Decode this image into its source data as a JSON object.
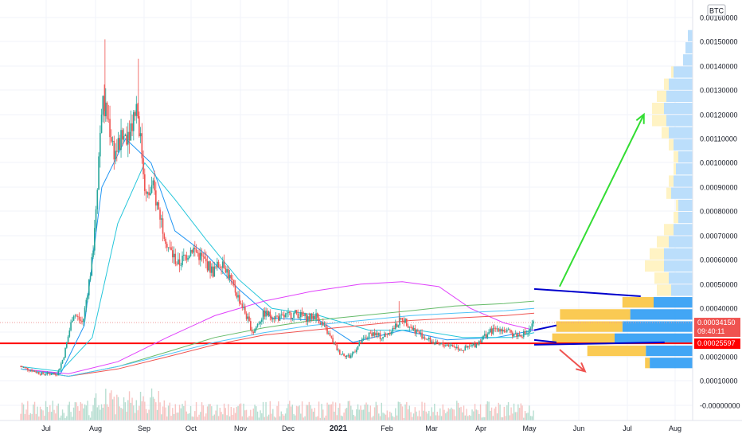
{
  "chart_data": {
    "type": "candlestick",
    "currency_label": "BTC",
    "y_ticks": [
      "0.00160000",
      "0.00150000",
      "0.00140000",
      "0.00130000",
      "0.00120000",
      "0.00110000",
      "0.00100000",
      "0.00090000",
      "0.00080000",
      "0.00070000",
      "0.00060000",
      "0.00050000",
      "0.00040000",
      "0.00030000",
      "0.00020000",
      "0.00010000",
      "-0.00000000"
    ],
    "ylim": [
      0,
      0.00163
    ],
    "x_ticks": [
      {
        "label": "Jul",
        "bold": false
      },
      {
        "label": "Aug",
        "bold": false
      },
      {
        "label": "Sep",
        "bold": false
      },
      {
        "label": "Oct",
        "bold": false
      },
      {
        "label": "Nov",
        "bold": false
      },
      {
        "label": "Dec",
        "bold": false
      },
      {
        "label": "2021",
        "bold": true
      },
      {
        "label": "Feb",
        "bold": false
      },
      {
        "label": "Mar",
        "bold": false
      },
      {
        "label": "Apr",
        "bold": false
      },
      {
        "label": "May",
        "bold": false
      },
      {
        "label": "Jun",
        "bold": false
      },
      {
        "label": "Jul",
        "bold": false
      },
      {
        "label": "Aug",
        "bold": false
      }
    ],
    "grid": true,
    "price_anchors": [
      [
        "2020-06-15",
        0.00016
      ],
      [
        "2020-06-28",
        0.00013
      ],
      [
        "2020-07-08",
        0.00013
      ],
      [
        "2020-07-12",
        0.0002
      ],
      [
        "2020-07-18",
        0.00038
      ],
      [
        "2020-07-24",
        0.00034
      ],
      [
        "2020-07-30",
        0.0006
      ],
      [
        "2020-08-02",
        0.0009
      ],
      [
        "2020-08-05",
        0.00125
      ],
      [
        "2020-08-09",
        0.00118
      ],
      [
        "2020-08-13",
        0.00104
      ],
      [
        "2020-08-18",
        0.0011
      ],
      [
        "2020-08-23",
        0.00115
      ],
      [
        "2020-08-27",
        0.00125
      ],
      [
        "2020-08-30",
        0.00105
      ],
      [
        "2020-09-02",
        0.00085
      ],
      [
        "2020-09-06",
        0.0009
      ],
      [
        "2020-09-10",
        0.0008
      ],
      [
        "2020-09-16",
        0.00065
      ],
      [
        "2020-09-22",
        0.00058
      ],
      [
        "2020-10-01",
        0.00065
      ],
      [
        "2020-10-08",
        0.0006
      ],
      [
        "2020-10-14",
        0.00055
      ],
      [
        "2020-10-20",
        0.0006
      ],
      [
        "2020-10-26",
        0.0005
      ],
      [
        "2020-11-02",
        0.0004
      ],
      [
        "2020-11-08",
        0.0003
      ],
      [
        "2020-11-15",
        0.00038
      ],
      [
        "2020-11-25",
        0.00036
      ],
      [
        "2020-12-05",
        0.00038
      ],
      [
        "2020-12-12",
        0.00036
      ],
      [
        "2020-12-18",
        0.00037
      ],
      [
        "2020-12-25",
        0.0003
      ],
      [
        "2021-01-01",
        0.00022
      ],
      [
        "2021-01-08",
        0.0002
      ],
      [
        "2021-01-15",
        0.00026
      ],
      [
        "2021-01-22",
        0.0003
      ],
      [
        "2021-01-28",
        0.00028
      ],
      [
        "2021-02-05",
        0.00032
      ],
      [
        "2021-02-10",
        0.00036
      ],
      [
        "2021-02-16",
        0.00032
      ],
      [
        "2021-02-24",
        0.00028
      ],
      [
        "2021-03-04",
        0.00025
      ],
      [
        "2021-03-12",
        0.00025
      ],
      [
        "2021-03-20",
        0.00023
      ],
      [
        "2021-03-28",
        0.00025
      ],
      [
        "2021-04-05",
        0.0003
      ],
      [
        "2021-04-12",
        0.00032
      ],
      [
        "2021-04-18",
        0.0003
      ],
      [
        "2021-04-24",
        0.00029
      ],
      [
        "2021-04-30",
        0.0003
      ],
      [
        "2021-05-04",
        0.00034
      ]
    ],
    "moving_averages": [
      {
        "color": "#2196f3",
        "points": [
          [
            "2020-06-15",
            0.00015
          ],
          [
            "2020-07-10",
            0.00013
          ],
          [
            "2020-07-25",
            0.00033
          ],
          [
            "2020-08-05",
            0.0009
          ],
          [
            "2020-08-20",
            0.0011
          ],
          [
            "2020-09-05",
            0.001
          ],
          [
            "2020-09-20",
            0.00072
          ],
          [
            "2020-10-10",
            0.00062
          ],
          [
            "2020-10-30",
            0.00048
          ],
          [
            "2020-11-20",
            0.00036
          ],
          [
            "2020-12-20",
            0.00035
          ],
          [
            "2021-01-10",
            0.00026
          ],
          [
            "2021-02-10",
            0.00031
          ],
          [
            "2021-03-10",
            0.00027
          ],
          [
            "2021-04-10",
            0.00028
          ],
          [
            "2021-05-04",
            0.00031
          ]
        ]
      },
      {
        "color": "#26c6da",
        "points": [
          [
            "2020-06-15",
            0.00016
          ],
          [
            "2020-07-10",
            0.00014
          ],
          [
            "2020-07-30",
            0.00028
          ],
          [
            "2020-08-15",
            0.00075
          ],
          [
            "2020-09-01",
            0.001
          ],
          [
            "2020-09-20",
            0.00085
          ],
          [
            "2020-10-10",
            0.00068
          ],
          [
            "2020-10-30",
            0.00052
          ],
          [
            "2020-11-20",
            0.0004
          ],
          [
            "2020-12-20",
            0.00037
          ],
          [
            "2021-01-20",
            0.00031
          ],
          [
            "2021-02-20",
            0.00031
          ],
          [
            "2021-03-20",
            0.00028
          ],
          [
            "2021-04-20",
            0.00028
          ],
          [
            "2021-05-04",
            0.0003
          ]
        ]
      },
      {
        "color": "#e040fb",
        "points": [
          [
            "2020-06-15",
            0.00015
          ],
          [
            "2020-07-15",
            0.00013
          ],
          [
            "2020-08-15",
            0.00018
          ],
          [
            "2020-09-15",
            0.00028
          ],
          [
            "2020-10-15",
            0.00037
          ],
          [
            "2020-11-15",
            0.00043
          ],
          [
            "2020-12-15",
            0.00047
          ],
          [
            "2021-01-15",
            0.0005
          ],
          [
            "2021-02-10",
            0.00051
          ],
          [
            "2021-03-05",
            0.00049
          ],
          [
            "2021-03-25",
            0.0004
          ],
          [
            "2021-04-15",
            0.00034
          ],
          [
            "2021-05-04",
            0.00031
          ]
        ]
      },
      {
        "color": "#ef5350",
        "points": [
          [
            "2020-06-15",
            0.00015
          ],
          [
            "2020-07-15",
            0.00012
          ],
          [
            "2020-08-15",
            0.00015
          ],
          [
            "2020-09-15",
            0.0002
          ],
          [
            "2020-10-15",
            0.00025
          ],
          [
            "2020-11-15",
            0.00029
          ],
          [
            "2020-12-15",
            0.00031
          ],
          [
            "2021-01-15",
            0.00033
          ],
          [
            "2021-02-15",
            0.00035
          ],
          [
            "2021-03-15",
            0.00036
          ],
          [
            "2021-04-15",
            0.00037
          ],
          [
            "2021-05-04",
            0.00038
          ]
        ]
      },
      {
        "color": "#66bb6a",
        "points": [
          [
            "2020-06-15",
            0.00015
          ],
          [
            "2020-07-15",
            0.00012
          ],
          [
            "2020-08-15",
            0.00016
          ],
          [
            "2020-09-15",
            0.00022
          ],
          [
            "2020-10-15",
            0.00028
          ],
          [
            "2020-11-15",
            0.00032
          ],
          [
            "2020-12-15",
            0.00035
          ],
          [
            "2021-01-15",
            0.00037
          ],
          [
            "2021-02-15",
            0.00039
          ],
          [
            "2021-03-15",
            0.00041
          ],
          [
            "2021-04-15",
            0.00042
          ],
          [
            "2021-05-04",
            0.00043
          ]
        ]
      },
      {
        "color": "#4fc3f7",
        "points": [
          [
            "2020-06-15",
            0.00015
          ],
          [
            "2020-07-15",
            0.00012
          ],
          [
            "2020-08-15",
            0.00016
          ],
          [
            "2020-09-15",
            0.00021
          ],
          [
            "2020-10-15",
            0.00026
          ],
          [
            "2020-11-15",
            0.0003
          ],
          [
            "2020-12-15",
            0.00033
          ],
          [
            "2021-01-15",
            0.00035
          ],
          [
            "2021-02-15",
            0.00037
          ],
          [
            "2021-03-15",
            0.00038
          ],
          [
            "2021-04-15",
            0.00039
          ],
          [
            "2021-05-04",
            0.0004
          ]
        ]
      }
    ],
    "dotted_line": {
      "value": 0.0003415,
      "color": "#ef9a9a"
    },
    "horizontal_line": {
      "value": 0.00025597,
      "color": "#ff0000"
    },
    "price_labels": [
      {
        "value": 0.0003415,
        "lines": [
          "0.00034150",
          "09:40:11"
        ],
        "color": "#ef5350"
      },
      {
        "value": 0.00025597,
        "lines": [
          "0.00025597"
        ],
        "color": "#ff0000"
      }
    ],
    "trendlines": [
      {
        "color": "#0000cc",
        "from": [
          "2021-05-04",
          0.00048
        ],
        "to": [
          "2021-07-10",
          0.00045
        ]
      },
      {
        "color": "#0000cc",
        "from": [
          "2021-05-04",
          0.00031
        ],
        "to": [
          "2021-05-18",
          0.00033
        ]
      },
      {
        "color": "#0000cc",
        "from": [
          "2021-05-04",
          0.00027
        ],
        "to": [
          "2021-05-18",
          0.00026
        ]
      },
      {
        "color": "#0000cc",
        "from": [
          "2021-05-04",
          0.00025
        ],
        "to": [
          "2021-07-25",
          0.00026
        ]
      }
    ],
    "arrows": [
      {
        "color": "#33dd33",
        "from": [
          "2021-05-20",
          0.00049
        ],
        "to": [
          "2021-07-12",
          0.0012
        ]
      },
      {
        "color": "#ef5350",
        "from": [
          "2021-05-20",
          0.00023
        ],
        "to": [
          "2021-06-05",
          0.00014
        ]
      }
    ],
    "volume_profile": {
      "bins_big": [
        {
          "low": 0.0004,
          "high": 0.00045,
          "blue": 0.5,
          "yellow": 0.4
        },
        {
          "low": 0.00035,
          "high": 0.0004,
          "blue": 0.8,
          "yellow": 0.9
        },
        {
          "low": 0.0003,
          "high": 0.00035,
          "blue": 0.9,
          "yellow": 0.85
        },
        {
          "low": 0.00025,
          "high": 0.0003,
          "blue": 1.0,
          "yellow": 0.8
        },
        {
          "low": 0.0002,
          "high": 0.00025,
          "blue": 0.6,
          "yellow": 0.75
        },
        {
          "low": 0.00015,
          "high": 0.0002,
          "blue": 0.55,
          "yellow": 0.06
        }
      ],
      "bins_small": [
        [
          0.0015,
          0.01,
          0.0
        ],
        [
          0.00145,
          0.015,
          0.0
        ],
        [
          0.0014,
          0.02,
          0.0
        ],
        [
          0.00135,
          0.04,
          0.005
        ],
        [
          0.0013,
          0.05,
          0.01
        ],
        [
          0.00125,
          0.055,
          0.02
        ],
        [
          0.0012,
          0.06,
          0.025
        ],
        [
          0.00115,
          0.055,
          0.03
        ],
        [
          0.0011,
          0.05,
          0.015
        ],
        [
          0.00105,
          0.04,
          0.01
        ],
        [
          0.001,
          0.03,
          0.01
        ],
        [
          0.00095,
          0.035,
          0.005
        ],
        [
          0.0009,
          0.04,
          0.01
        ],
        [
          0.00085,
          0.045,
          0.01
        ],
        [
          0.0008,
          0.03,
          0.005
        ],
        [
          0.00075,
          0.03,
          0.01
        ],
        [
          0.0007,
          0.04,
          0.02
        ],
        [
          0.00065,
          0.05,
          0.025
        ],
        [
          0.0006,
          0.06,
          0.03
        ],
        [
          0.00055,
          0.06,
          0.04
        ],
        [
          0.0005,
          0.05,
          0.03
        ],
        [
          0.00045,
          0.045,
          0.03
        ]
      ]
    }
  }
}
